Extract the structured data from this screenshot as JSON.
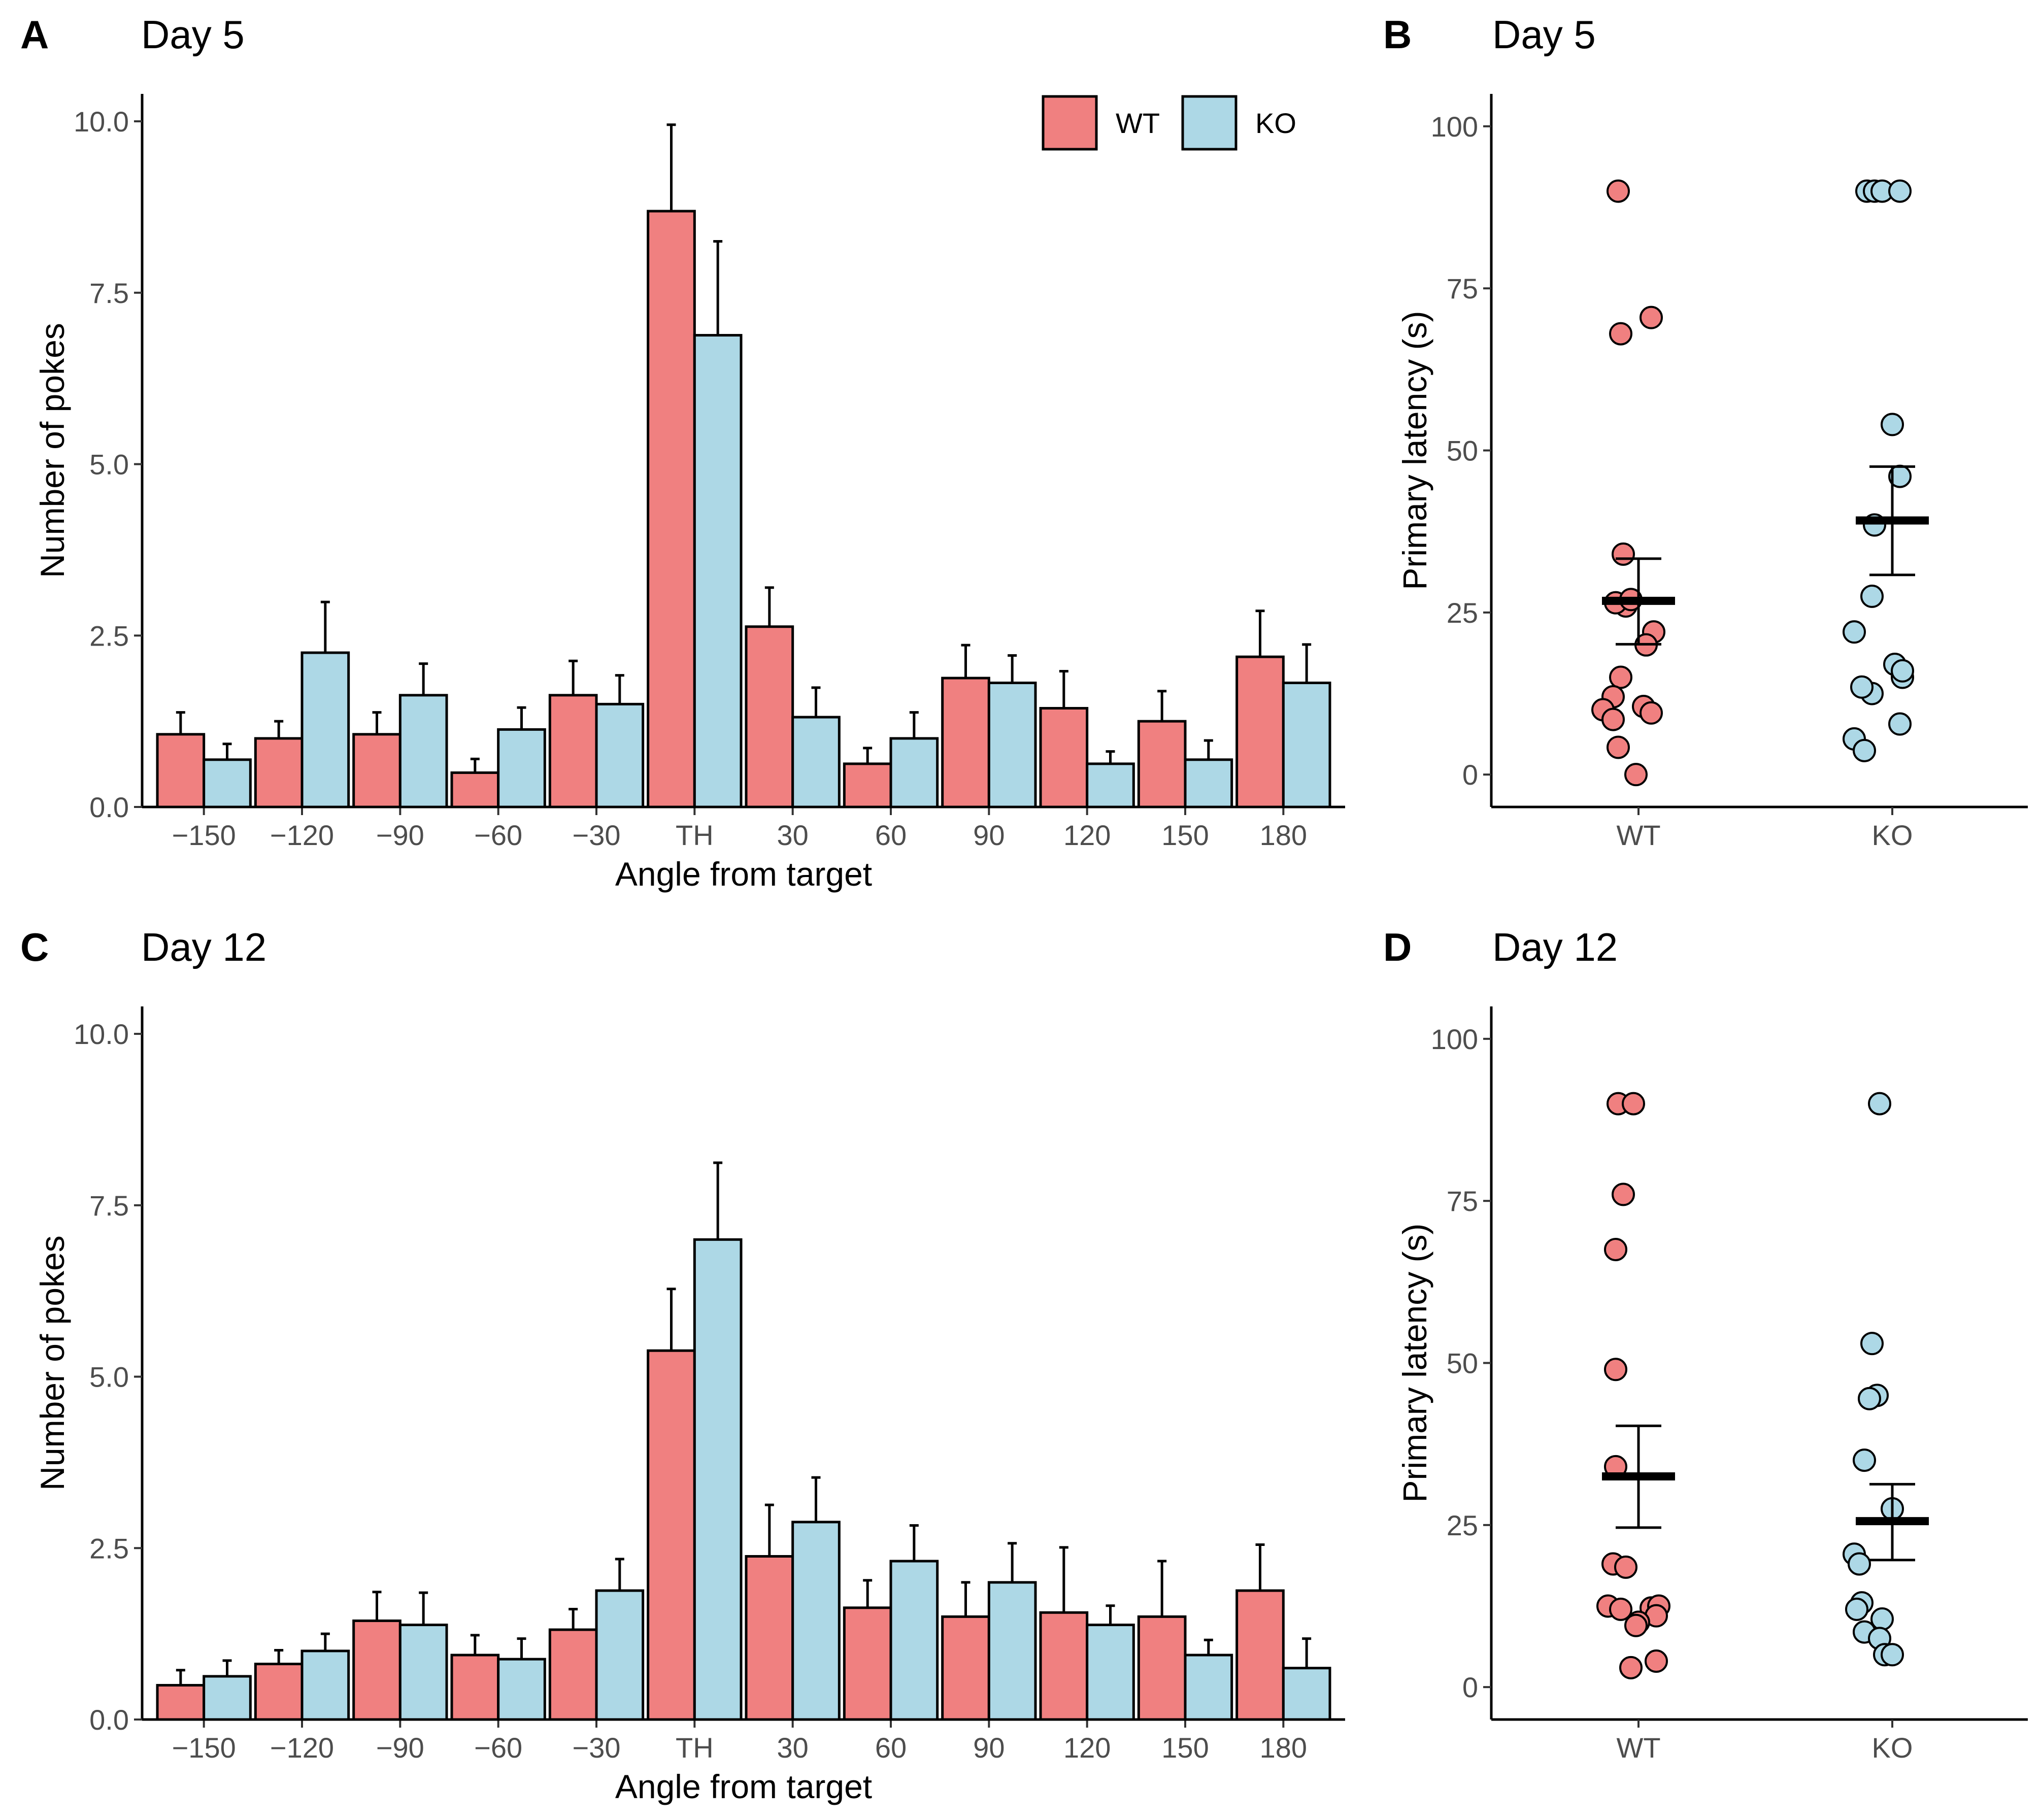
{
  "colors": {
    "wt": "#f08080",
    "ko": "#add8e6",
    "outline": "#000000"
  },
  "chart_data": [
    {
      "type": "bar",
      "panel": "A",
      "title": "Day 5",
      "xlabel": "Angle from target",
      "ylabel": "Number of pokes",
      "categories": [
        "−150",
        "−120",
        "−90",
        "−60",
        "−30",
        "TH",
        "30",
        "60",
        "90",
        "120",
        "150",
        "180"
      ],
      "ylim": [
        0,
        10.4
      ],
      "yticks": [
        0,
        2.5,
        5,
        7.5,
        10
      ],
      "ytick_labels": [
        "0.0",
        "2.5",
        "5.0",
        "7.5",
        "10.0"
      ],
      "legend": {
        "position": "top-right",
        "entries": [
          "WT",
          "KO"
        ]
      },
      "series": [
        {
          "name": "WT",
          "values": [
            1.06,
            1.0,
            1.06,
            0.5,
            1.63,
            8.69,
            2.63,
            0.63,
            1.88,
            1.44,
            1.25,
            2.19
          ],
          "errors": [
            0.32,
            0.25,
            0.32,
            0.2,
            0.5,
            1.26,
            0.57,
            0.23,
            0.48,
            0.54,
            0.44,
            0.67
          ]
        },
        {
          "name": "KO",
          "values": [
            0.69,
            2.25,
            1.63,
            1.13,
            1.5,
            6.88,
            1.31,
            1.0,
            1.81,
            0.63,
            0.69,
            1.81
          ],
          "errors": [
            0.23,
            0.74,
            0.46,
            0.32,
            0.42,
            1.37,
            0.43,
            0.38,
            0.4,
            0.18,
            0.28,
            0.56
          ]
        }
      ]
    },
    {
      "type": "scatter",
      "panel": "B",
      "title": "Day 5",
      "xlabel": "",
      "ylabel": "Primary latency (s)",
      "categories": [
        "WT",
        "KO"
      ],
      "ylim": [
        -5,
        105
      ],
      "yticks": [
        0,
        25,
        50,
        75,
        100
      ],
      "ytick_labels": [
        "0",
        "25",
        "50",
        "75",
        "100"
      ],
      "groups": [
        {
          "name": "WT",
          "mean": 26.8,
          "sem_low": 20.1,
          "sem_high": 33.3,
          "points": [
            [
              -0.08,
              90
            ],
            [
              -0.07,
              68
            ],
            [
              0.05,
              70.5
            ],
            [
              -0.06,
              34
            ],
            [
              -0.05,
              26
            ],
            [
              -0.09,
              26.5
            ],
            [
              -0.03,
              27
            ],
            [
              0.06,
              22
            ],
            [
              0.03,
              20
            ],
            [
              -0.07,
              15
            ],
            [
              -0.1,
              12
            ],
            [
              -0.14,
              10
            ],
            [
              0.02,
              10.5
            ],
            [
              0.05,
              9.5
            ],
            [
              -0.1,
              8.5
            ],
            [
              -0.08,
              4.2
            ],
            [
              -0.01,
              0
            ]
          ]
        },
        {
          "name": "KO",
          "mean": 39.2,
          "sem_low": 30.8,
          "sem_high": 47.5,
          "points": [
            [
              -0.1,
              90
            ],
            [
              -0.07,
              90
            ],
            [
              -0.04,
              90
            ],
            [
              0.03,
              90
            ],
            [
              0.0,
              54
            ],
            [
              0.03,
              46
            ],
            [
              -0.07,
              38.5
            ],
            [
              -0.08,
              27.5
            ],
            [
              -0.15,
              22
            ],
            [
              0.01,
              17
            ],
            [
              0.04,
              15
            ],
            [
              0.04,
              16
            ],
            [
              -0.08,
              12.5
            ],
            [
              -0.12,
              13.5
            ],
            [
              0.03,
              7.8
            ],
            [
              -0.15,
              5.5
            ],
            [
              -0.11,
              3.7
            ]
          ]
        }
      ]
    },
    {
      "type": "bar",
      "panel": "C",
      "title": "Day 12",
      "xlabel": "Angle from target",
      "ylabel": "Number of pokes",
      "categories": [
        "−150",
        "−120",
        "−90",
        "−60",
        "−30",
        "TH",
        "30",
        "60",
        "90",
        "120",
        "150",
        "180"
      ],
      "ylim": [
        0,
        10.4
      ],
      "yticks": [
        0,
        2.5,
        5,
        7.5,
        10
      ],
      "ytick_labels": [
        "0.0",
        "2.5",
        "5.0",
        "7.5",
        "10.0"
      ],
      "series": [
        {
          "name": "WT",
          "values": [
            0.5,
            0.81,
            1.44,
            0.94,
            1.31,
            5.38,
            2.38,
            1.63,
            1.5,
            1.56,
            1.5,
            1.88
          ],
          "errors": [
            0.22,
            0.2,
            0.42,
            0.29,
            0.3,
            0.9,
            0.75,
            0.4,
            0.5,
            0.95,
            0.81,
            0.67
          ]
        },
        {
          "name": "KO",
          "values": [
            0.63,
            1.0,
            1.38,
            0.88,
            1.88,
            7.0,
            2.88,
            2.31,
            2.0,
            1.38,
            0.94,
            0.75
          ],
          "errors": [
            0.23,
            0.25,
            0.47,
            0.3,
            0.46,
            1.12,
            0.65,
            0.52,
            0.57,
            0.28,
            0.22,
            0.43
          ]
        }
      ]
    },
    {
      "type": "scatter",
      "panel": "D",
      "title": "Day 12",
      "xlabel": "",
      "ylabel": "Primary latency (s)",
      "categories": [
        "WT",
        "KO"
      ],
      "ylim": [
        -5,
        105
      ],
      "yticks": [
        0,
        25,
        50,
        75,
        100
      ],
      "ytick_labels": [
        "0",
        "25",
        "50",
        "75",
        "100"
      ],
      "groups": [
        {
          "name": "WT",
          "mean": 32.5,
          "sem_low": 24.6,
          "sem_high": 40.3,
          "points": [
            [
              -0.08,
              90
            ],
            [
              -0.02,
              90
            ],
            [
              -0.06,
              76
            ],
            [
              -0.09,
              67.5
            ],
            [
              -0.09,
              49
            ],
            [
              -0.09,
              34
            ],
            [
              -0.1,
              19
            ],
            [
              -0.05,
              18.5
            ],
            [
              -0.12,
              12.5
            ],
            [
              -0.07,
              12
            ],
            [
              0.05,
              12.2
            ],
            [
              0.08,
              12.5
            ],
            [
              0.07,
              11
            ],
            [
              0.0,
              10
            ],
            [
              -0.01,
              9.5
            ],
            [
              0.07,
              4
            ],
            [
              -0.03,
              3
            ]
          ]
        },
        {
          "name": "KO",
          "mean": 25.6,
          "sem_low": 19.6,
          "sem_high": 31.3,
          "points": [
            [
              -0.05,
              90
            ],
            [
              -0.08,
              53
            ],
            [
              -0.06,
              45
            ],
            [
              -0.09,
              44.5
            ],
            [
              -0.11,
              35
            ],
            [
              0.0,
              27.5
            ],
            [
              -0.15,
              20.5
            ],
            [
              -0.13,
              19
            ],
            [
              -0.12,
              13
            ],
            [
              -0.14,
              12
            ],
            [
              -0.04,
              10.5
            ],
            [
              -0.11,
              8.5
            ],
            [
              -0.05,
              7.5
            ],
            [
              -0.03,
              5
            ],
            [
              0.0,
              5
            ]
          ]
        }
      ]
    }
  ]
}
